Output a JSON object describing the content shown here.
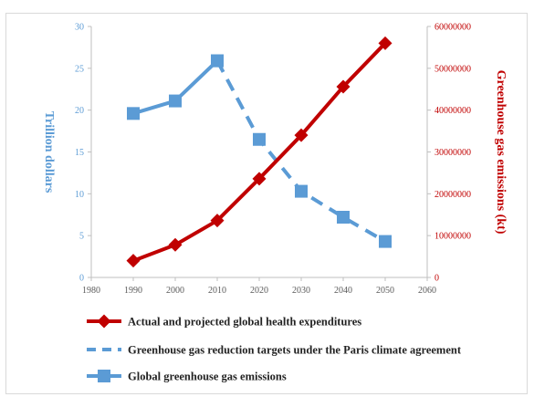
{
  "chart_data": {
    "type": "line",
    "x_axis": {
      "min": 1980,
      "max": 2060,
      "step": 10,
      "ticks": [
        "1980",
        "1990",
        "2000",
        "2010",
        "2020",
        "2030",
        "2040",
        "2050",
        "2060"
      ]
    },
    "y_left": {
      "label": "Trillion dollars",
      "min": 0,
      "max": 30,
      "step": 5,
      "ticks": [
        "0",
        "5",
        "10",
        "15",
        "20",
        "25",
        "30"
      ],
      "color": "#5b9bd5"
    },
    "y_right": {
      "label": "Greenhouse gas emissions (kt)",
      "min": 0,
      "max": 60000000,
      "step": 10000000,
      "ticks": [
        "0",
        "10000000",
        "20000000",
        "30000000",
        "40000000",
        "50000000",
        "60000000"
      ],
      "color": "#c00000"
    },
    "series": [
      {
        "name": "Actual and projected global health expenditures",
        "axis": "left",
        "color": "#c00000",
        "marker": "diamond",
        "points": [
          {
            "x": 1990,
            "y": 2.0
          },
          {
            "x": 2000,
            "y": 3.9
          },
          {
            "x": 2010,
            "y": 6.8
          },
          {
            "x": 2020,
            "y": 11.8
          },
          {
            "x": 2030,
            "y": 17.0
          },
          {
            "x": 2040,
            "y": 22.8
          },
          {
            "x": 2050,
            "y": 28.0
          }
        ]
      },
      {
        "name": "Global greenhouse gas emissions",
        "axis": "left",
        "color": "#5b9bd5",
        "marker": "square",
        "points": [
          {
            "x": 1990,
            "y": 19.6
          },
          {
            "x": 2000,
            "y": 21.1
          },
          {
            "x": 2010,
            "y": 25.9
          }
        ]
      },
      {
        "name": "Greenhouse gas reduction targets under the Paris climate agreement",
        "axis": "left",
        "color": "#5b9bd5",
        "marker": "square",
        "dashed": true,
        "points": [
          {
            "x": 2010,
            "y": 25.9
          },
          {
            "x": 2020,
            "y": 16.5
          },
          {
            "x": 2030,
            "y": 10.3
          },
          {
            "x": 2040,
            "y": 7.2
          },
          {
            "x": 2050,
            "y": 4.3
          }
        ]
      }
    ],
    "legend": {
      "placement": "bottom",
      "entries": [
        {
          "label": "Actual and projected global health expenditures",
          "color": "#c00000",
          "style": "solid-diamond"
        },
        {
          "label": "Greenhouse gas reduction targets under the Paris climate agreement",
          "color": "#5b9bd5",
          "style": "dashed"
        },
        {
          "label": "Global greenhouse gas emissions",
          "color": "#5b9bd5",
          "style": "solid-square"
        }
      ]
    },
    "grid": false
  }
}
